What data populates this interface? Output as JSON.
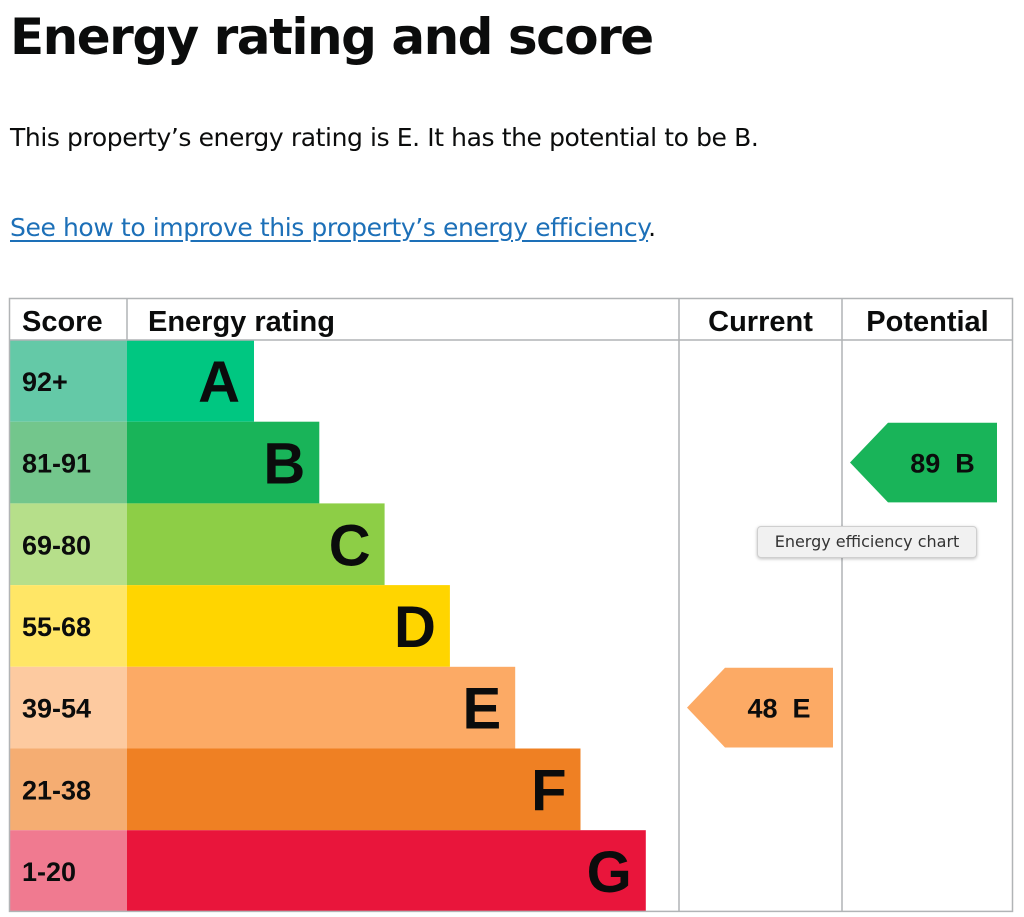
{
  "page": {
    "title": "Energy rating and score",
    "intro": "This property’s energy rating is E. It has the potential to be B.",
    "improve_link": "See how to improve this property’s energy efficiency",
    "improve_link_suffix": "."
  },
  "tooltip": "Energy efficiency chart",
  "chart_data": {
    "type": "table",
    "headers": {
      "score": "Score",
      "rating": "Energy rating",
      "current": "Current",
      "potential": "Potential"
    },
    "bands": [
      {
        "letter": "A",
        "range": "92+",
        "color": "#00c781",
        "score_bg": "#64c9a7"
      },
      {
        "letter": "B",
        "range": "81-91",
        "color": "#19b459",
        "score_bg": "#73c68c"
      },
      {
        "letter": "C",
        "range": "69-80",
        "color": "#8dce46",
        "score_bg": "#b6df8a"
      },
      {
        "letter": "D",
        "range": "55-68",
        "color": "#ffd500",
        "score_bg": "#ffe666"
      },
      {
        "letter": "E",
        "range": "39-54",
        "color": "#fcaa65",
        "score_bg": "#fdcaa0"
      },
      {
        "letter": "F",
        "range": "21-38",
        "color": "#ef8023",
        "score_bg": "#f5ad72"
      },
      {
        "letter": "G",
        "range": "1-20",
        "color": "#e9153b",
        "score_bg": "#f07a90"
      }
    ],
    "current": {
      "score": 48,
      "band": "E",
      "label": "48  E"
    },
    "potential": {
      "score": 89,
      "band": "B",
      "label": "89  B"
    }
  }
}
